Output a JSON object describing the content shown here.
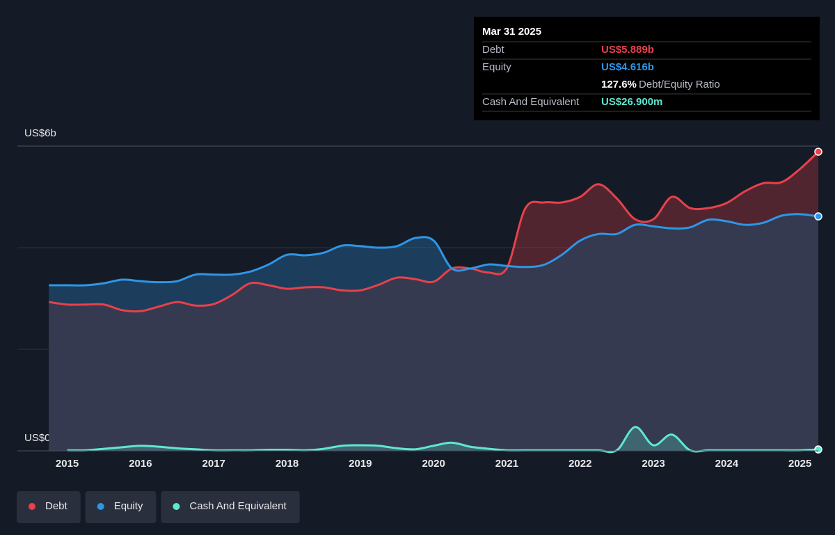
{
  "chart_data": {
    "type": "area",
    "x": [
      2014.75,
      2015,
      2015.25,
      2015.5,
      2015.75,
      2016,
      2016.25,
      2016.5,
      2016.75,
      2017,
      2017.25,
      2017.5,
      2017.75,
      2018,
      2018.25,
      2018.5,
      2018.75,
      2019,
      2019.25,
      2019.5,
      2019.75,
      2020,
      2020.25,
      2020.5,
      2020.75,
      2021,
      2021.25,
      2021.5,
      2021.75,
      2022,
      2022.25,
      2022.5,
      2022.75,
      2023,
      2023.25,
      2023.5,
      2023.75,
      2024,
      2024.25,
      2024.5,
      2024.75,
      2025,
      2025.25
    ],
    "series": [
      {
        "name": "Debt",
        "color": "#e8414b",
        "values": [
          2.93,
          2.88,
          2.88,
          2.88,
          2.77,
          2.75,
          2.84,
          2.93,
          2.86,
          2.89,
          3.07,
          3.3,
          3.26,
          3.19,
          3.22,
          3.22,
          3.16,
          3.16,
          3.27,
          3.41,
          3.38,
          3.33,
          3.59,
          3.59,
          3.51,
          3.6,
          4.77,
          4.89,
          4.89,
          5.0,
          5.25,
          4.97,
          4.56,
          4.56,
          5.0,
          4.78,
          4.78,
          4.88,
          5.11,
          5.27,
          5.29,
          5.55,
          5.889
        ]
      },
      {
        "name": "Equity",
        "color": "#2e96e6",
        "values": [
          3.26,
          3.26,
          3.26,
          3.3,
          3.37,
          3.34,
          3.32,
          3.34,
          3.47,
          3.47,
          3.47,
          3.53,
          3.67,
          3.86,
          3.85,
          3.9,
          4.04,
          4.03,
          4.0,
          4.03,
          4.19,
          4.14,
          3.59,
          3.59,
          3.67,
          3.64,
          3.62,
          3.66,
          3.86,
          4.14,
          4.27,
          4.27,
          4.45,
          4.42,
          4.38,
          4.4,
          4.55,
          4.52,
          4.45,
          4.49,
          4.63,
          4.66,
          4.616
        ]
      },
      {
        "name": "Cash And Equivalent",
        "color": "#5ee8cf",
        "values": [
          null,
          0.01,
          0.01,
          0.04,
          0.07,
          0.1,
          0.08,
          0.05,
          0.03,
          0.01,
          0.01,
          0.01,
          0.02,
          0.02,
          0.01,
          0.04,
          0.1,
          0.11,
          0.1,
          0.05,
          0.03,
          0.1,
          0.16,
          0.08,
          0.04,
          0.01,
          0.01,
          0.01,
          0.01,
          0.01,
          0.01,
          0.01,
          0.47,
          0.11,
          0.32,
          0.01,
          0.01,
          0.01,
          0.01,
          0.01,
          0.01,
          0.01,
          0.0269
        ]
      }
    ],
    "xlim": [
      2014.32,
      2025.25
    ],
    "xticks": [
      2015,
      2016,
      2017,
      2018,
      2019,
      2020,
      2021,
      2022,
      2023,
      2024,
      2025
    ],
    "ylim": [
      0,
      6
    ],
    "yticks": [
      {
        "value": 0,
        "label": "US$0"
      },
      {
        "value": 2,
        "label": null
      },
      {
        "value": 4,
        "label": null
      },
      {
        "value": 6,
        "label": "US$6b"
      }
    ],
    "grid": true,
    "legend": "bottom-left",
    "tooltip": {
      "date": "Mar 31 2025",
      "rows": [
        {
          "label": "Debt",
          "value": "US$5.889b"
        },
        {
          "label": "Equity",
          "value": "US$4.616b"
        }
      ],
      "ratio": {
        "value": "127.6%",
        "label": "Debt/Equity Ratio"
      },
      "cash": {
        "label": "Cash And Equivalent",
        "value": "US$26.900m"
      }
    }
  }
}
